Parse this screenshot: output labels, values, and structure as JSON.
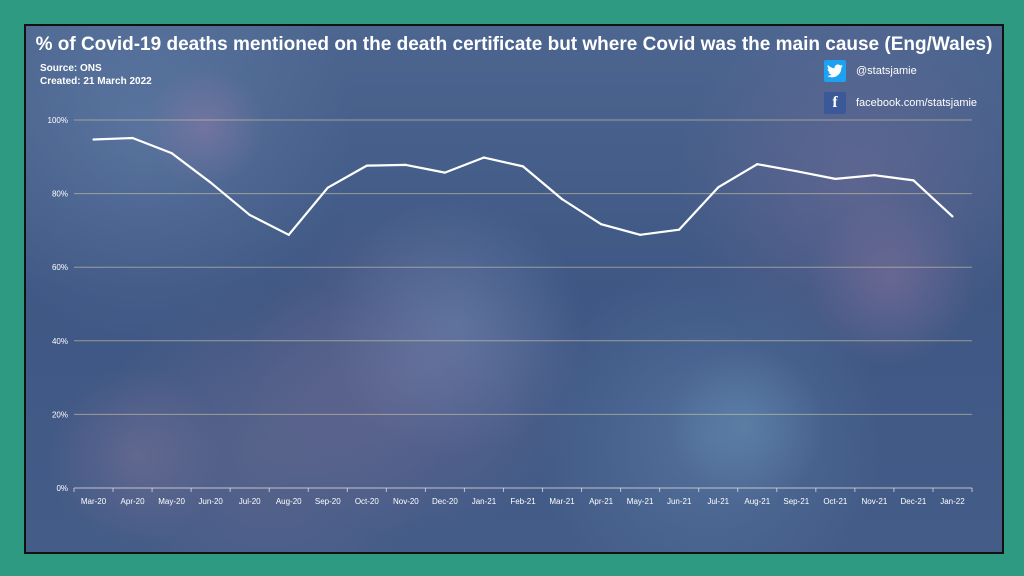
{
  "header": {
    "title": "% of Covid-19 deaths mentioned on the death certificate but where Covid was the main cause (Eng/Wales)",
    "source": "Source: ONS",
    "created": "Created: 21 March 2022"
  },
  "social": {
    "twitter_handle": "@statsjamie",
    "facebook_url": "facebook.com/statsjamie",
    "twitter_icon": "twitter-bird",
    "facebook_icon": "facebook-f"
  },
  "colors": {
    "page_background": "#2e9a82",
    "line": "#ffffff",
    "twitter": "#1da1f2",
    "facebook": "#3b5998"
  },
  "chart_data": {
    "type": "line",
    "title": "% of Covid-19 deaths mentioned on the death certificate but where Covid was the main cause (Eng/Wales)",
    "xlabel": "",
    "ylabel": "",
    "categories": [
      "Mar-20",
      "Apr-20",
      "May-20",
      "Jun-20",
      "Jul-20",
      "Aug-20",
      "Sep-20",
      "Oct-20",
      "Nov-20",
      "Dec-20",
      "Jan-21",
      "Feb-21",
      "Mar-21",
      "Apr-21",
      "May-21",
      "Jun-21",
      "Jul-21",
      "Aug-21",
      "Sep-21",
      "Oct-21",
      "Nov-21",
      "Dec-21",
      "Jan-22"
    ],
    "values": [
      94.7,
      95.1,
      91.0,
      83.0,
      74.2,
      68.8,
      81.6,
      87.6,
      87.8,
      85.7,
      89.8,
      87.4,
      78.5,
      71.7,
      68.8,
      70.2,
      81.7,
      88.0,
      86.1,
      84.0,
      85.0,
      83.6,
      73.8
    ],
    "ylim": [
      0,
      100
    ],
    "yticks": [
      0,
      20,
      40,
      60,
      80,
      100
    ],
    "ytick_labels": [
      "0%",
      "20%",
      "40%",
      "60%",
      "80%",
      "100%"
    ],
    "grid": "horizontal",
    "legend": "none"
  }
}
